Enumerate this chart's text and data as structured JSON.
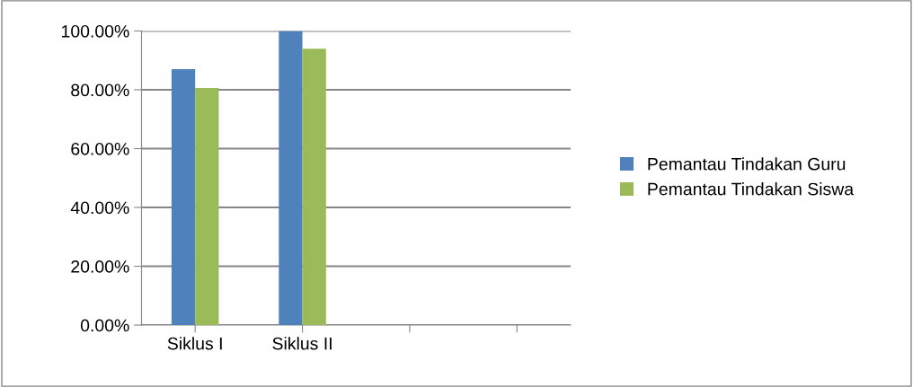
{
  "chart_data": {
    "type": "bar",
    "categories": [
      "Siklus I",
      "Siklus II",
      null,
      null
    ],
    "series": [
      {
        "name": "Pemantau Tindakan Guru",
        "color": "#4f81bd",
        "values": [
          87,
          100,
          null,
          null
        ]
      },
      {
        "name": "Pemantau Tindakan Siswa",
        "color": "#9bbb59",
        "values": [
          80.6,
          94,
          null,
          null
        ]
      }
    ],
    "ylim": [
      0,
      100
    ],
    "yticks": [
      {
        "value": 0,
        "label": "0.00%"
      },
      {
        "value": 20,
        "label": "20.00%"
      },
      {
        "value": 40,
        "label": "40.00%"
      },
      {
        "value": 60,
        "label": "60.00%"
      },
      {
        "value": 80,
        "label": "80.00%"
      },
      {
        "value": 100,
        "label": "100.00%"
      }
    ],
    "grid": "y",
    "legend": "right"
  }
}
